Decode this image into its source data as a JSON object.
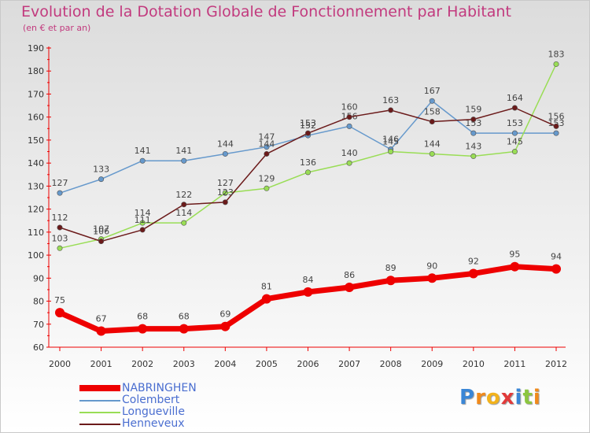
{
  "chart_data": {
    "type": "line",
    "title": "Evolution de la Dotation Globale de Fonctionnement par Habitant",
    "subtitle": "(en € et par an)",
    "xlabel": "",
    "ylabel": "",
    "categories": [
      "2000",
      "2001",
      "2002",
      "2003",
      "2004",
      "2005",
      "2006",
      "2007",
      "2008",
      "2009",
      "2010",
      "2011",
      "2012"
    ],
    "ylim": [
      60,
      190
    ],
    "yticks": [
      "60",
      "70",
      "80",
      "90",
      "100",
      "110",
      "120",
      "130",
      "140",
      "150",
      "160",
      "170",
      "180",
      "190"
    ],
    "grid": false,
    "legend_position": "bottom-left",
    "series": [
      {
        "name": "Colembert",
        "color": "#6699cc",
        "values": [
          127,
          133,
          141,
          141,
          144,
          147,
          152,
          156,
          146,
          167,
          153,
          153,
          153
        ]
      },
      {
        "name": "Longueville",
        "color": "#99dd55",
        "values": [
          103,
          107,
          114,
          114,
          127,
          129,
          136,
          140,
          145,
          144,
          143,
          145,
          183
        ]
      },
      {
        "name": "Henneveux",
        "color": "#6b1a1a",
        "values": [
          112,
          106,
          111,
          122,
          123,
          144,
          153,
          160,
          163,
          158,
          159,
          164,
          156
        ]
      },
      {
        "name": "NABRINGHEN",
        "color": "#ee0000",
        "values": [
          75,
          67,
          68,
          68,
          69,
          81,
          84,
          86,
          89,
          90,
          92,
          95,
          94
        ]
      }
    ]
  },
  "legend": {
    "items": [
      "NABRINGHEN",
      "Colembert",
      "Longueville",
      "Henneveux"
    ]
  },
  "logo": {
    "text": "Proxiti",
    "letters": [
      "P",
      "r",
      "o",
      "x",
      "i",
      "t",
      "i"
    ]
  }
}
